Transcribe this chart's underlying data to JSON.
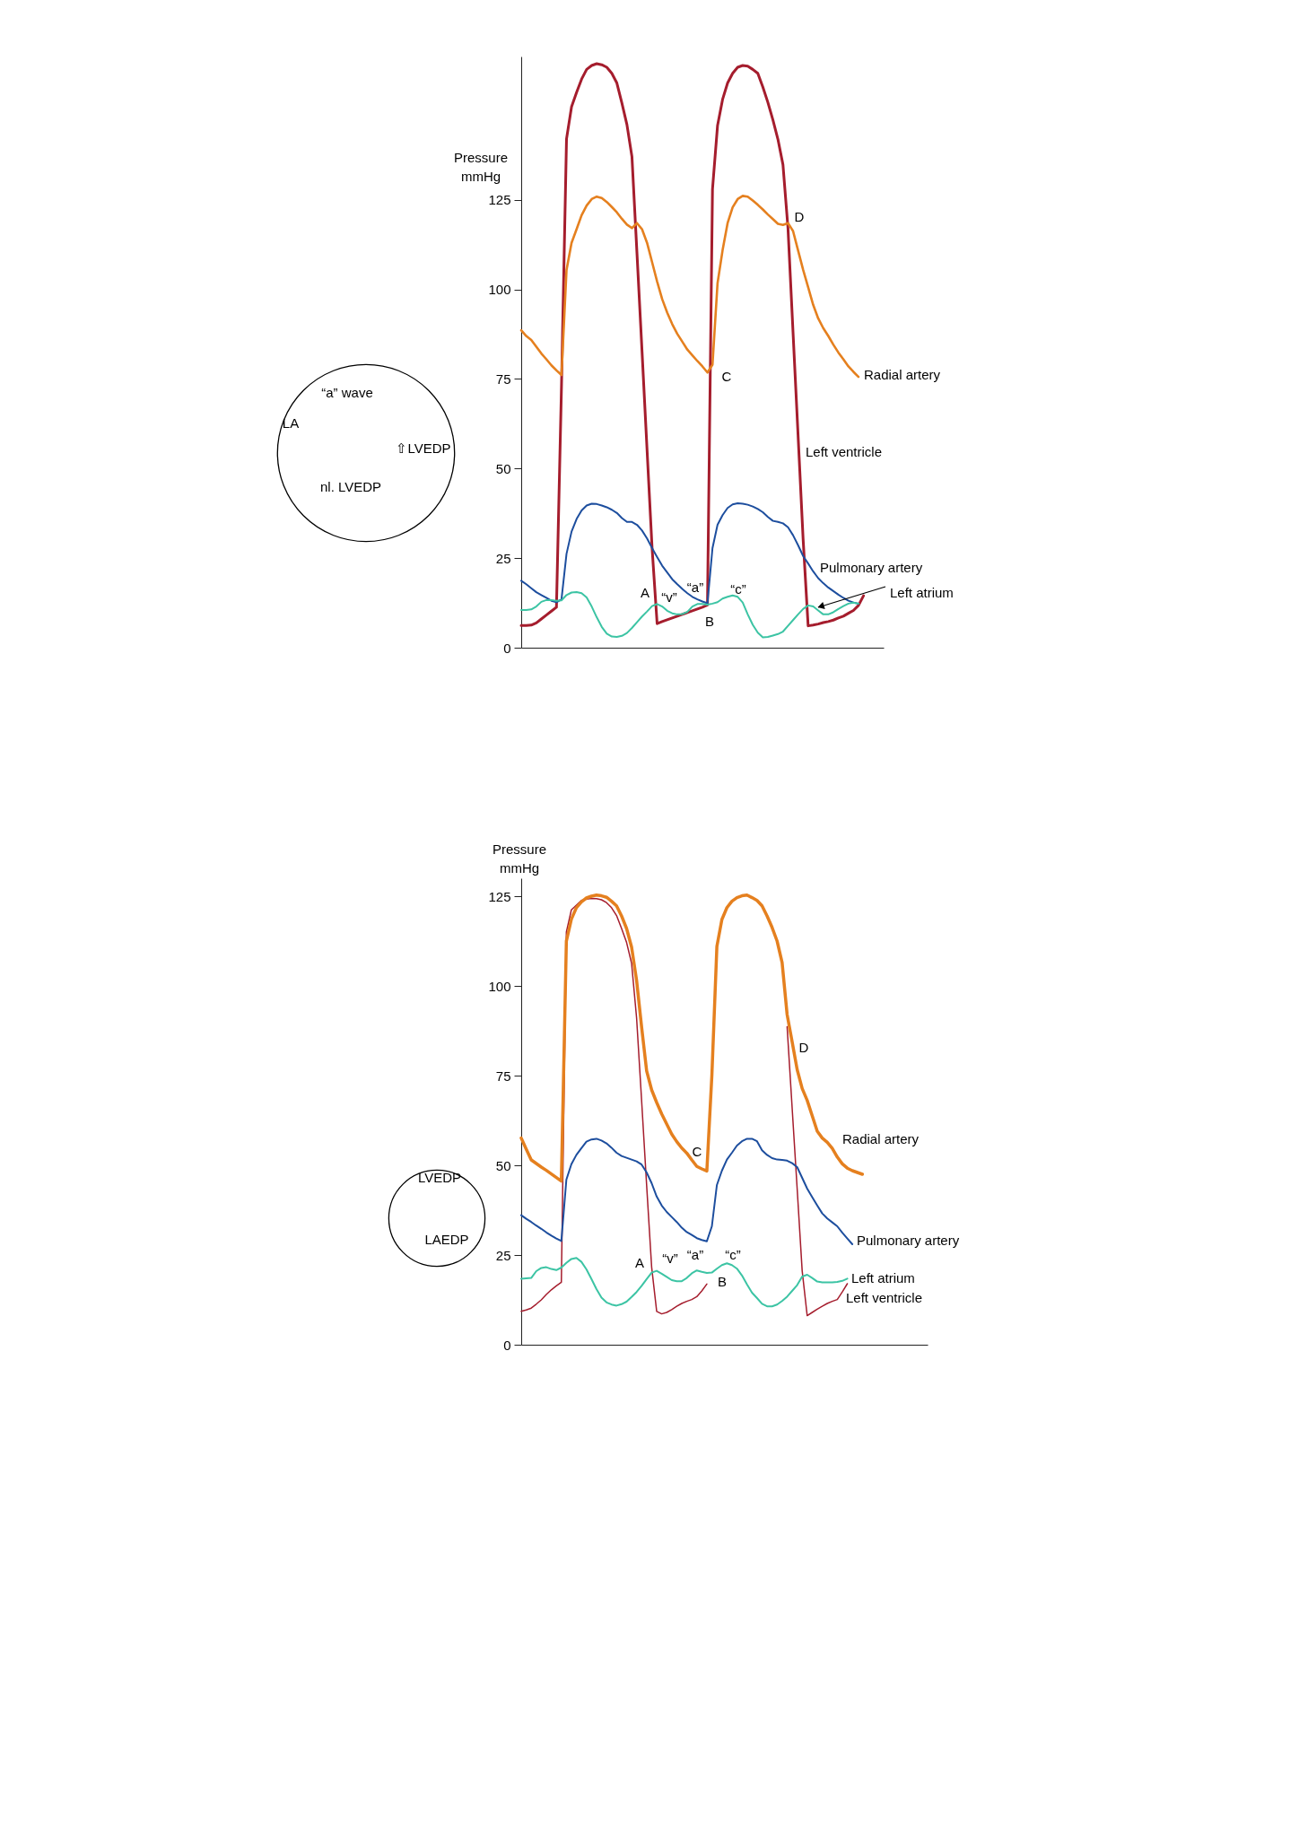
{
  "chart_data": [
    {
      "type": "line",
      "ylabel": "Pressure\nmmHg",
      "tick_labels": "y",
      "categories": [
        null,
        null,
        null,
        null,
        null,
        null,
        null,
        null,
        null,
        null,
        null,
        null,
        null,
        null,
        null,
        null,
        null,
        null,
        null,
        null,
        null,
        null,
        null,
        null,
        null,
        null,
        null,
        null,
        null,
        null,
        null,
        null,
        null,
        null,
        null,
        null,
        null,
        null,
        null,
        null,
        null,
        null,
        null,
        null,
        null,
        null,
        null,
        null,
        null,
        null,
        null,
        null,
        null,
        null,
        null,
        null,
        null,
        null,
        null,
        null,
        null,
        null,
        null,
        null,
        null,
        null,
        null,
        null,
        null,
        null,
        null,
        null,
        null
      ],
      "ylim": [
        0,
        165
      ],
      "yticks": [
        0,
        25,
        50,
        75,
        100,
        125
      ],
      "series": [
        {
          "name": "Left ventricle",
          "color": "#a51d2d",
          "values": [
            6.2,
            6.2,
            6.3,
            6.9,
            8.0,
            9.1,
            10.2,
            11.3,
            73,
            142,
            151,
            155,
            158.7,
            161.4,
            162.5,
            163,
            162.7,
            162,
            160.3,
            157.6,
            152,
            146,
            137,
            110,
            82.7,
            55.2,
            27.8,
            6.7,
            7.3,
            7.8,
            8.3,
            8.8,
            9.3,
            9.8,
            10.3,
            10.8,
            11.3,
            11.9,
            128,
            145.7,
            153,
            157.6,
            160.3,
            162,
            162.5,
            162.3,
            161.4,
            160.3,
            156.5,
            152.2,
            147.3,
            141.9,
            134.8,
            117,
            88,
            59.3,
            30.4,
            6.1,
            6.3,
            6.6,
            7.0,
            7.3,
            7.7,
            8.3,
            8.8,
            9.6,
            10.4,
            11.8,
            14.5,
            null,
            null,
            null,
            null
          ]
        },
        {
          "name": "Pulmonary artery",
          "color": "#1d4e9e",
          "values": [
            18.7,
            17.7,
            16.6,
            15.5,
            14.7,
            13.9,
            13.1,
            12.7,
            13.5,
            26.2,
            32.4,
            35.9,
            38.3,
            39.7,
            40.2,
            40.1,
            39.7,
            39.2,
            38.5,
            37.6,
            36.2,
            35.1,
            35.1,
            34.3,
            32.7,
            30.5,
            27.8,
            25.3,
            22.9,
            21,
            19.1,
            17.7,
            16.4,
            15.2,
            14.2,
            13.5,
            12.9,
            12.4,
            27.8,
            34.3,
            37,
            39,
            40,
            40.3,
            40.2,
            39.9,
            39.4,
            38.7,
            37.8,
            36.5,
            35.4,
            35.1,
            34.7,
            33.6,
            31.4,
            28.6,
            25.6,
            23.5,
            21.3,
            19.4,
            18,
            16.8,
            15.8,
            14.8,
            13.9,
            13.1,
            12.6,
            12.3,
            null,
            null,
            null,
            null,
            null
          ]
        },
        {
          "name": "Left atrium",
          "color": "#3cc4a4",
          "values": [
            10.5,
            10.5,
            10.7,
            11.5,
            12.8,
            13.3,
            13.3,
            13.1,
            13.2,
            14.7,
            15.4,
            15.5,
            15.2,
            14,
            11.5,
            8.5,
            5.8,
            3.9,
            3.1,
            3,
            3.3,
            4.1,
            5.5,
            7.1,
            8.7,
            10.1,
            11.6,
            12.2,
            11.5,
            10.3,
            9.6,
            9.3,
            9.4,
            10,
            11.5,
            12.2,
            12.2,
            12,
            12.3,
            12.7,
            13.7,
            14.2,
            14.6,
            14.2,
            12.6,
            9.3,
            6.4,
            4.2,
            2.9,
            3,
            3.4,
            3.8,
            4.5,
            6.1,
            7.7,
            9.3,
            10.8,
            11.8,
            11.5,
            10.4,
            9.3,
            9.3,
            9.9,
            10.8,
            11.6,
            12.3,
            12.6,
            12.3,
            null,
            null,
            null,
            null,
            null
          ]
        },
        {
          "name": "Radial artery",
          "color": "#e5801f",
          "values": [
            88.6,
            87,
            85.9,
            84,
            82.1,
            80.5,
            78.8,
            77.4,
            76.1,
            105.4,
            113,
            116.8,
            120.7,
            123.4,
            125.2,
            125.9,
            125.5,
            124.4,
            123,
            121.5,
            119.7,
            118.1,
            117.1,
            118.5,
            116.8,
            113,
            107.6,
            102.2,
            97.3,
            93.5,
            90.3,
            87.6,
            85.4,
            83.2,
            81.6,
            80,
            78.5,
            76.8,
            79,
            101.7,
            110.9,
            118.5,
            122.9,
            125.2,
            126.1,
            125.9,
            124.8,
            123.6,
            122.3,
            120.9,
            119.6,
            118.3,
            118,
            118.5,
            116.3,
            110.9,
            105.5,
            100.6,
            95.7,
            91.9,
            89.2,
            87,
            84.6,
            82.4,
            80.5,
            78.5,
            77,
            75.6,
            null,
            null,
            null,
            null,
            null
          ]
        }
      ],
      "annotations": [
        "A",
        "“v”",
        "“a”",
        "B",
        "“c”",
        "C",
        "D",
        "“a” wave",
        "LA",
        "⇧LVEDP",
        "nl. LVEDP"
      ]
    },
    {
      "type": "line",
      "ylabel": "Pressure\nmmHg",
      "tick_labels": "y",
      "categories": [
        null,
        null,
        null,
        null,
        null,
        null,
        null,
        null,
        null,
        null,
        null,
        null,
        null,
        null,
        null,
        null,
        null,
        null,
        null,
        null,
        null,
        null,
        null,
        null,
        null,
        null,
        null,
        null,
        null,
        null,
        null,
        null,
        null,
        null,
        null,
        null,
        null,
        null,
        null,
        null,
        null,
        null,
        null,
        null,
        null,
        null,
        null,
        null,
        null,
        null,
        null,
        null,
        null,
        null,
        null,
        null,
        null,
        null,
        null,
        null,
        null,
        null,
        null,
        null,
        null,
        null,
        null,
        null,
        null,
        null,
        null,
        null,
        null,
        null,
        null,
        null,
        null,
        null,
        null,
        null,
        null,
        null
      ],
      "ylim": [
        0,
        130
      ],
      "yticks": [
        0,
        25,
        50,
        75,
        100,
        125
      ],
      "series": [
        {
          "name": "Left ventricle",
          "color": "#a51d2d",
          "values": [
            9.3,
            9.7,
            10.2,
            11.3,
            12.5,
            14,
            15.3,
            16.4,
            17.4,
            115,
            121.2,
            122.5,
            123.8,
            124.2,
            124.4,
            124.3,
            124,
            123.2,
            121.8,
            119.6,
            116,
            112.1,
            106.3,
            91,
            68,
            44.4,
            21.6,
            9.3,
            8.6,
            9,
            9.8,
            10.7,
            11.5,
            12.1,
            12.6,
            13.4,
            15,
            16.9,
            null,
            null,
            null,
            null,
            null,
            null,
            null,
            null,
            null,
            null,
            null,
            null,
            null,
            null,
            null,
            88.6,
            66,
            43.5,
            20.6,
            8.1,
            9,
            9.9,
            10.7,
            11.5,
            12.1,
            12.6,
            14.7,
            17,
            null,
            null,
            null,
            null,
            null,
            null,
            null,
            null,
            null,
            null,
            null,
            null,
            null,
            null,
            null,
            null
          ]
        },
        {
          "name": "Pulmonary artery",
          "color": "#1d4e9e",
          "values": [
            36.1,
            35.1,
            34.2,
            33.2,
            32.3,
            31.3,
            30.4,
            29.6,
            28.9,
            46,
            50.3,
            52.9,
            54.8,
            56.6,
            57.2,
            57.4,
            56.9,
            56.1,
            54.9,
            53.5,
            52.6,
            52.1,
            51.6,
            51.1,
            50.2,
            48,
            45,
            41.3,
            38.8,
            37,
            35.6,
            34.2,
            32.6,
            31.4,
            30.6,
            29.7,
            29.2,
            28.8,
            33,
            44.5,
            48.5,
            51.6,
            53.5,
            55.5,
            56.7,
            57.4,
            57.4,
            56.7,
            54.2,
            52.9,
            52,
            51.6,
            51.5,
            51.3,
            50.6,
            49.5,
            46.5,
            43.5,
            41.1,
            38.8,
            36.6,
            35.2,
            34.1,
            33,
            31.2,
            29.6,
            28,
            null,
            null,
            null,
            null,
            null,
            null,
            null,
            null,
            null,
            null,
            null,
            null,
            null,
            null,
            null
          ]
        },
        {
          "name": "Left atrium",
          "color": "#3cc4a4",
          "values": [
            18.4,
            18.5,
            18.6,
            20.5,
            21.4,
            21.6,
            21.1,
            20.8,
            21.5,
            22.8,
            23.9,
            24.2,
            23.1,
            21,
            18.3,
            15.5,
            13.1,
            11.8,
            11.2,
            10.9,
            11.3,
            12,
            13.3,
            14.7,
            16.4,
            18.3,
            20.1,
            20.6,
            19.8,
            18.9,
            18,
            17.7,
            17.7,
            18.6,
            19.9,
            20.7,
            20.3,
            20,
            20.1,
            21.2,
            22.2,
            22.7,
            22.2,
            21.2,
            19.3,
            16.8,
            14.5,
            13,
            11.4,
            10.7,
            10.7,
            11.2,
            12.2,
            13.4,
            15,
            16.6,
            19,
            19.5,
            18.6,
            17.6,
            17.4,
            17.4,
            17.4,
            17.5,
            17.8,
            18.4,
            null,
            null,
            null,
            null,
            null,
            null,
            null,
            null,
            null,
            null,
            null,
            null,
            null,
            null,
            null,
            null
          ]
        },
        {
          "name": "Radial artery",
          "color": "#e5801f",
          "values": [
            57.6,
            54.5,
            51.5,
            50.5,
            49.5,
            48.6,
            47.6,
            46.6,
            45.6,
            112.5,
            118.6,
            121.8,
            123.4,
            124.5,
            125,
            125.3,
            125.1,
            124.7,
            123.6,
            122.3,
            119.5,
            116,
            110.8,
            101.5,
            88.5,
            76.3,
            71,
            67.5,
            64.3,
            61.5,
            58.7,
            56.6,
            54.8,
            53.4,
            51.5,
            49.7,
            49,
            48.4,
            75,
            111,
            118.5,
            121.8,
            123.6,
            124.6,
            125.1,
            125.3,
            124.6,
            123.8,
            122.3,
            119.5,
            116.3,
            112.5,
            106.5,
            92,
            84.4,
            76.7,
            71.4,
            68.1,
            63.8,
            59.5,
            57.6,
            56.4,
            54.7,
            52.3,
            50.4,
            49.2,
            48.5,
            48,
            47.5,
            null,
            null,
            null,
            null,
            null,
            null,
            null,
            null,
            null,
            null,
            null,
            null,
            null
          ]
        }
      ],
      "annotations": [
        "A",
        "“v”",
        "“a”",
        "B",
        "“c”",
        "C",
        "D",
        "LVEDP",
        "LAEDP"
      ]
    }
  ]
}
